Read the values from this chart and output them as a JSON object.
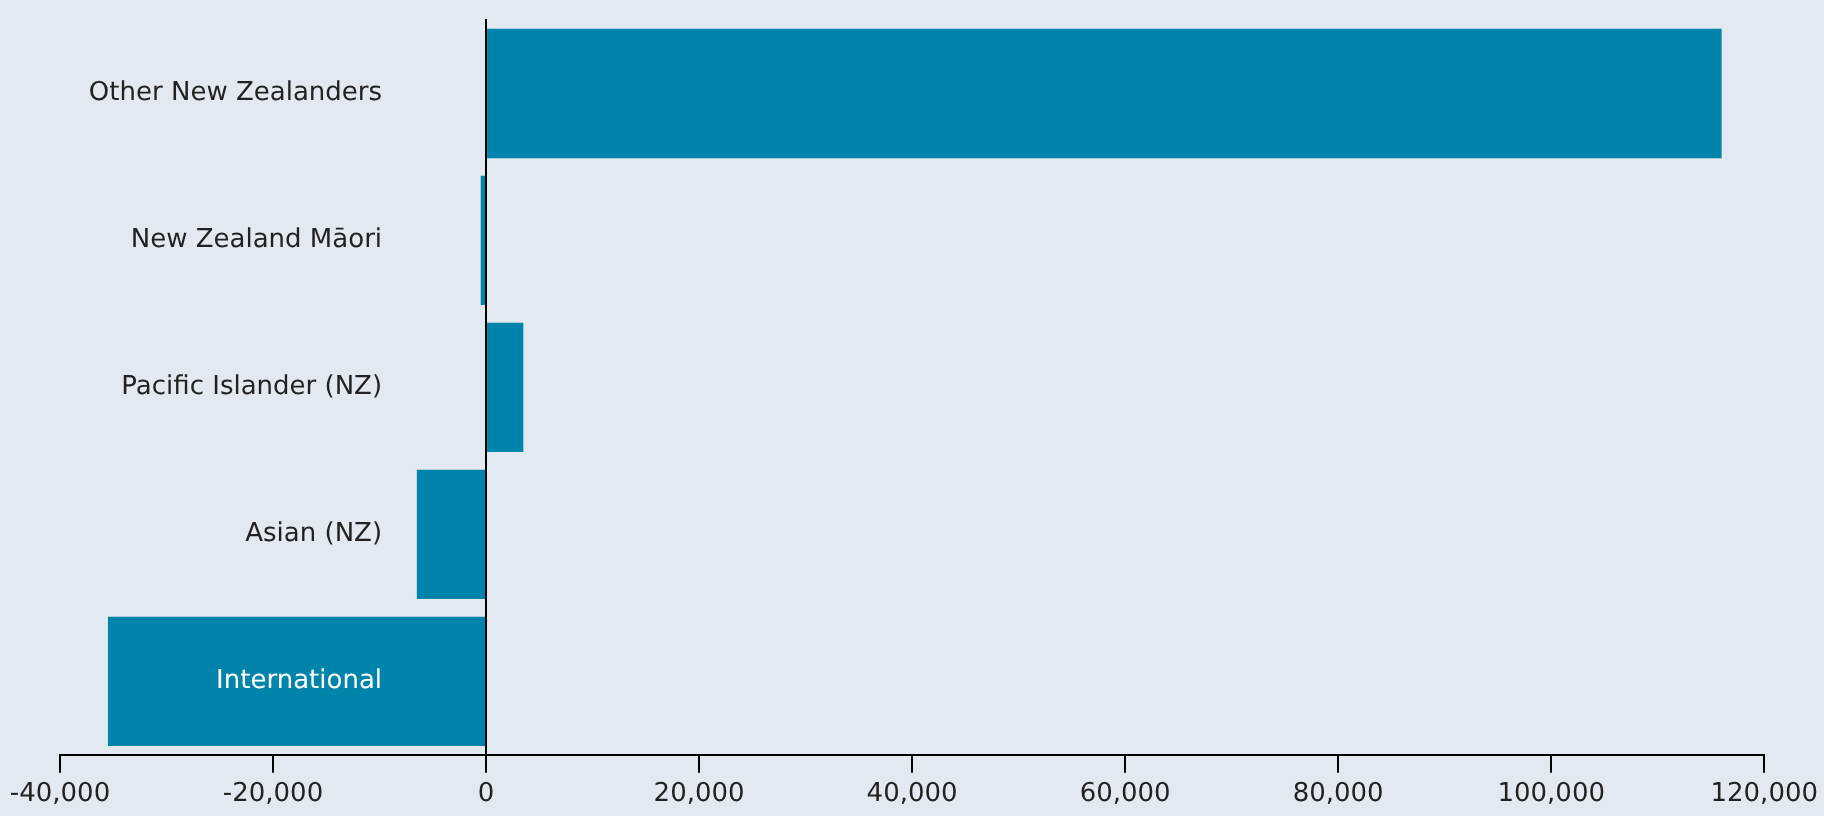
{
  "chart_data": {
    "type": "bar",
    "orientation": "horizontal",
    "categories": [
      "Other New Zealanders",
      "New Zealand Māori",
      "Pacific Islander (NZ)",
      "Asian (NZ)",
      "International"
    ],
    "values": [
      116000,
      -500,
      3500,
      -6500,
      -35500
    ],
    "color": "#0084ab",
    "xlim": [
      -40000,
      120000
    ],
    "xticks": [
      {
        "value": -40000,
        "label": "-40,000"
      },
      {
        "value": -20000,
        "label": "-20,000"
      },
      0,
      {
        "value": 20000,
        "label": "20,000"
      },
      {
        "value": 40000,
        "label": "40,000"
      },
      {
        "value": 60000,
        "label": "60,000"
      },
      {
        "value": 80000,
        "label": "80,000"
      },
      {
        "value": 100000,
        "label": "100,000"
      },
      {
        "value": 120000,
        "label": "120,000"
      }
    ],
    "legend": false
  }
}
